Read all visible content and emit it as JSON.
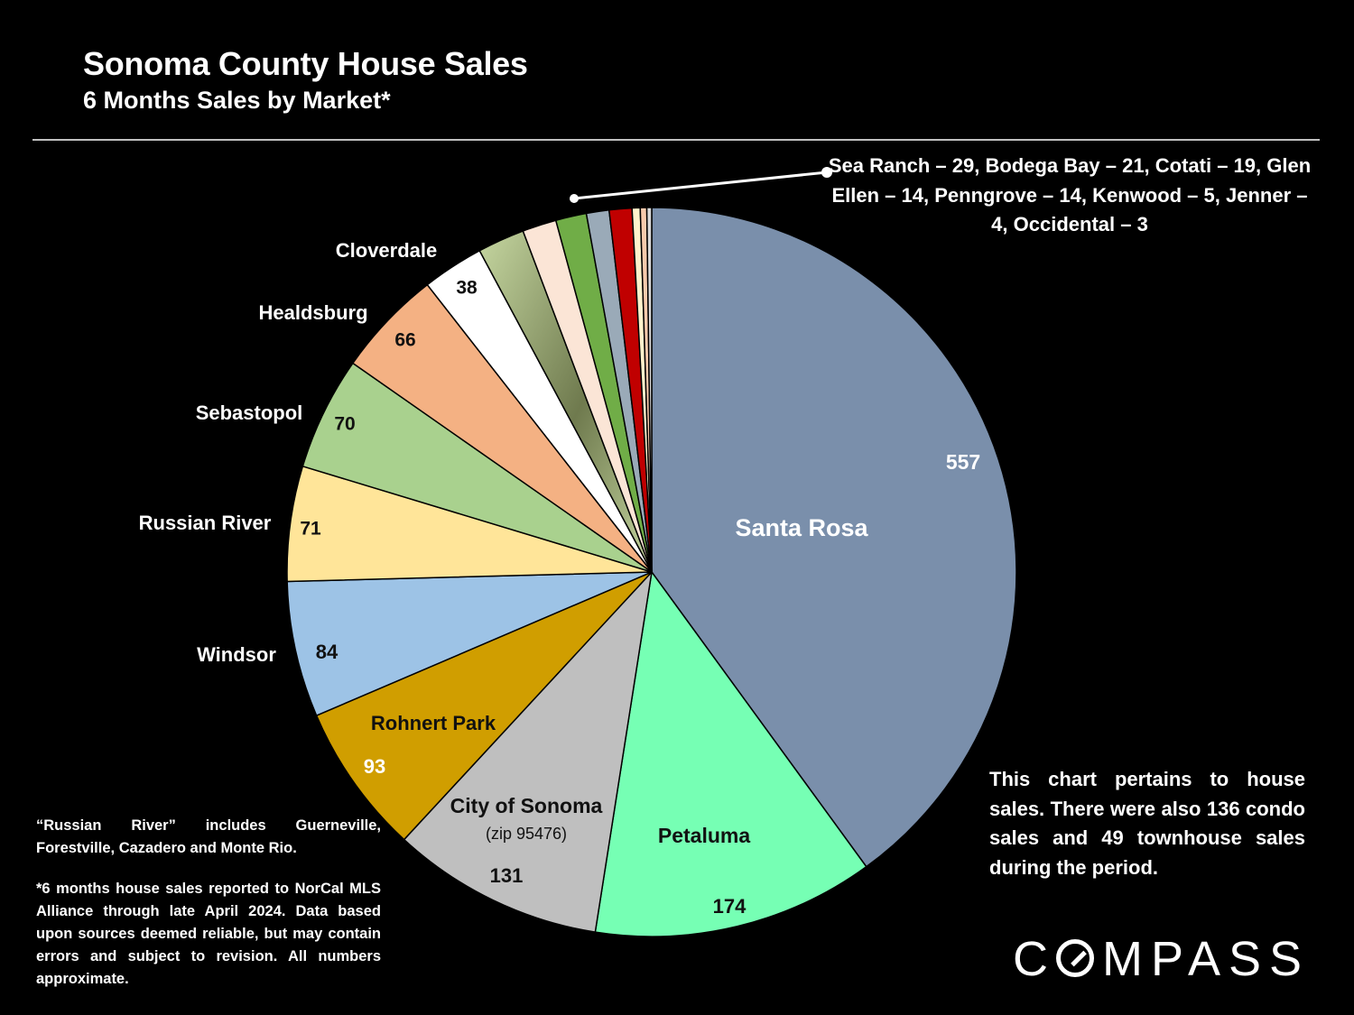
{
  "header": {
    "title": "Sonoma County House Sales",
    "subtitle": "6 Months Sales by Market*"
  },
  "chart_data": {
    "type": "pie",
    "title": "Sonoma County House Sales",
    "subtitle": "6 Months Sales by Market*",
    "slices": [
      {
        "name": "Santa Rosa",
        "value": 557,
        "color": "#7a8fab"
      },
      {
        "name": "Petaluma",
        "value": 174,
        "color": "#76ffb4"
      },
      {
        "name": "City of Sonoma",
        "sublabel": "(zip 95476)",
        "value": 131,
        "color": "#bfbfbf"
      },
      {
        "name": "Rohnert Park",
        "value": 93,
        "color": "#d09e00"
      },
      {
        "name": "Windsor",
        "value": 84,
        "color": "#9dc3e6"
      },
      {
        "name": "Russian River",
        "value": 71,
        "color": "#ffe599"
      },
      {
        "name": "Sebastopol",
        "value": 70,
        "color": "#a9d18e"
      },
      {
        "name": "Healdsburg",
        "value": 66,
        "color": "#f4b183"
      },
      {
        "name": "Cloverdale",
        "value": 38,
        "color": "#ffffff"
      },
      {
        "name": "Sea Ranch",
        "value": 29,
        "color": "#8a9a68"
      },
      {
        "name": "Bodega Bay",
        "value": 21,
        "color": "#fbe5d6"
      },
      {
        "name": "Cotati",
        "value": 19,
        "color": "#70ad47"
      },
      {
        "name": "Glen Ellen",
        "value": 14,
        "color": "#9aaab8"
      },
      {
        "name": "Penngrove",
        "value": 14,
        "color": "#c00000"
      },
      {
        "name": "Kenwood",
        "value": 5,
        "color": "#fff2cc"
      },
      {
        "name": "Jenner",
        "value": 4,
        "color": "#f8cbad"
      },
      {
        "name": "Occidental",
        "value": 3,
        "color": "#d9d9d9"
      }
    ],
    "others_note": "Sea Ranch – 29, Bodega Bay – 21, Cotati – 19, Glen Ellen – 14, Penngrove – 14, Kenwood – 5, Jenner – 4, Occidental – 3"
  },
  "notes": {
    "right": "This chart pertains to house sales. There were also 136 condo sales and 49 townhouse sales during the period.",
    "footnote1": "“Russian River” includes Guerneville, Forestville, Cazadero and Monte Rio.",
    "footnote2": "*6 months house sales reported to NorCal MLS Alliance through late April 2024. Data based upon sources deemed reliable, but may contain errors and subject to revision. All numbers approximate."
  },
  "brand": {
    "logo_text": "COMPASS"
  }
}
